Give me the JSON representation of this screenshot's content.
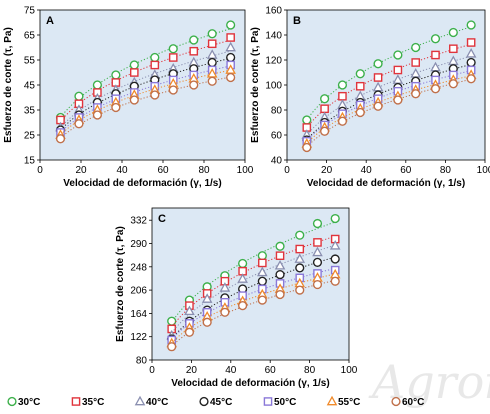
{
  "watermark": "Agroind",
  "legend": {
    "placement": "bottom",
    "entries": [
      {
        "label": "30°C",
        "marker": "circle",
        "color": "#3cb04a"
      },
      {
        "label": "35°C",
        "marker": "square",
        "color": "#e0343c"
      },
      {
        "label": "40°C",
        "marker": "triangle",
        "color": "#8a8fb0"
      },
      {
        "label": "45°C",
        "marker": "circle",
        "color": "#222222"
      },
      {
        "label": "50°C",
        "marker": "square",
        "color": "#8a78d8"
      },
      {
        "label": "55°C",
        "marker": "triangle",
        "color": "#f08a2a"
      },
      {
        "label": "60°C",
        "marker": "circle",
        "color": "#c0704a"
      }
    ]
  },
  "chart_data": [
    {
      "type": "scatter",
      "panel_label": "A",
      "xlabel": "Velocidad de deformación (γ, 1/s)",
      "ylabel": "Esfuerzo de corte (τ, Pa)",
      "xlim": [
        0,
        100
      ],
      "ylim": [
        15,
        75
      ],
      "xticks": [
        0,
        20,
        40,
        60,
        80,
        100
      ],
      "yticks": [
        15,
        25,
        35,
        45,
        55,
        65,
        75
      ],
      "background": "#dce8f4",
      "trendlines": "dotted",
      "x": [
        10,
        19,
        28,
        37,
        46,
        56,
        65,
        75,
        84,
        93
      ],
      "series": [
        {
          "name": "30°C",
          "values": [
            32,
            40.5,
            45,
            49,
            53,
            56,
            59.5,
            63,
            65.5,
            69
          ]
        },
        {
          "name": "35°C",
          "values": [
            31,
            37.5,
            42,
            46,
            50,
            53,
            56,
            58.5,
            61.5,
            64
          ]
        },
        {
          "name": "40°C",
          "values": [
            28,
            35,
            39.5,
            43,
            46,
            49,
            51.5,
            54,
            57,
            60
          ]
        },
        {
          "name": "45°C",
          "values": [
            27,
            33,
            38,
            41.5,
            44.5,
            47,
            49.5,
            51.5,
            54,
            56
          ]
        },
        {
          "name": "50°C",
          "values": [
            26,
            32,
            36,
            39.5,
            42,
            44.5,
            47,
            49,
            51,
            53
          ]
        },
        {
          "name": "55°C",
          "values": [
            25,
            31,
            35,
            38,
            41,
            43,
            45.5,
            47.5,
            49.5,
            51
          ]
        },
        {
          "name": "60°C",
          "values": [
            23.5,
            29.5,
            33,
            36,
            39,
            41,
            43,
            45,
            46.5,
            48
          ]
        }
      ]
    },
    {
      "type": "scatter",
      "panel_label": "B",
      "xlabel": "Velocidad de deformación (γ, 1/s)",
      "ylabel": "Esfuerzo de corte (τ, Pa)",
      "xlim": [
        0,
        100
      ],
      "ylim": [
        40,
        160
      ],
      "xticks": [
        0,
        20,
        40,
        60,
        80,
        100
      ],
      "yticks": [
        40,
        60,
        80,
        100,
        120,
        140,
        160
      ],
      "background": "#dce8f4",
      "trendlines": "dotted",
      "x": [
        10,
        19,
        28,
        37,
        46,
        56,
        65,
        75,
        84,
        93
      ],
      "series": [
        {
          "name": "30°C",
          "values": [
            72,
            89,
            100,
            109,
            117,
            124,
            130,
            137,
            142,
            148
          ]
        },
        {
          "name": "35°C",
          "values": [
            66,
            81,
            91,
            99,
            106,
            112,
            118,
            124,
            129,
            134
          ]
        },
        {
          "name": "40°C",
          "values": [
            60,
            74,
            84,
            91,
            98,
            104,
            109,
            114,
            119,
            125
          ]
        },
        {
          "name": "45°C",
          "values": [
            56,
            70,
            79,
            86,
            92,
            98,
            103,
            108,
            113,
            118
          ]
        },
        {
          "name": "50°C",
          "values": [
            55,
            68,
            77,
            84,
            89,
            95,
            99,
            104,
            108,
            112
          ]
        },
        {
          "name": "55°C",
          "values": [
            53,
            66,
            74,
            81,
            86,
            91,
            96,
            100,
            104,
            108
          ]
        },
        {
          "name": "60°C",
          "values": [
            50,
            63,
            71,
            78,
            83,
            88,
            93,
            97,
            101,
            105
          ]
        }
      ]
    },
    {
      "type": "scatter",
      "panel_label": "C",
      "xlabel": "Velocidad de deformación (γ, 1/s)",
      "ylabel": "Esfuerzo de corte (τ, Pa)",
      "xlim": [
        0,
        100
      ],
      "ylim": [
        80,
        354
      ],
      "xticks": [
        0,
        20,
        40,
        60,
        80,
        100
      ],
      "yticks": [
        80,
        122,
        164,
        206,
        248,
        290,
        332
      ],
      "background": "#dce8f4",
      "trendlines": "dotted",
      "x": [
        10,
        19,
        28,
        37,
        46,
        56,
        65,
        75,
        84,
        93
      ],
      "series": [
        {
          "name": "30°C",
          "values": [
            150,
            188,
            212,
            232,
            254,
            268,
            285,
            305,
            326,
            335
          ]
        },
        {
          "name": "35°C",
          "values": [
            136,
            178,
            200,
            222,
            240,
            255,
            268,
            280,
            292,
            298
          ]
        },
        {
          "name": "40°C",
          "values": [
            124,
            168,
            190,
            210,
            226,
            238,
            250,
            262,
            274,
            286
          ]
        },
        {
          "name": "45°C",
          "values": [
            118,
            150,
            170,
            192,
            208,
            222,
            234,
            246,
            256,
            262
          ]
        },
        {
          "name": "50°C",
          "values": [
            116,
            146,
            166,
            184,
            196,
            208,
            218,
            228,
            236,
            242
          ]
        },
        {
          "name": "55°C",
          "values": [
            110,
            138,
            158,
            174,
            186,
            198,
            208,
            218,
            228,
            234
          ]
        },
        {
          "name": "60°C",
          "values": [
            104,
            130,
            148,
            166,
            178,
            188,
            198,
            206,
            216,
            222
          ]
        }
      ]
    }
  ]
}
